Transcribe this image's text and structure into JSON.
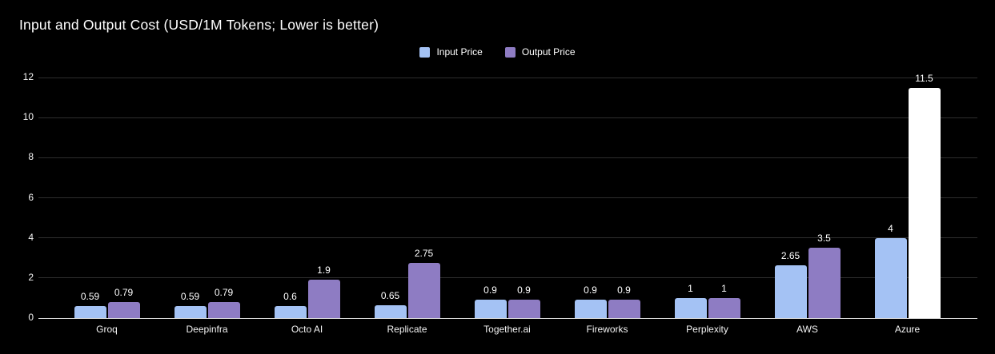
{
  "header": {
    "title": "Input and Output Cost (USD/1M Tokens; Lower is better)"
  },
  "legend": {
    "items": [
      {
        "label": "Input Price",
        "swatch_color": "#a4c2f4"
      },
      {
        "label": "Output Price",
        "swatch_color": "#8e7cc3"
      }
    ]
  },
  "chart_data": {
    "type": "bar",
    "title": "Input and Output Cost (USD/1M Tokens; Lower is better)",
    "categories": [
      "Groq",
      "Deepinfra",
      "Octo AI",
      "Replicate",
      "Together.ai",
      "Fireworks",
      "Perplexity",
      "AWS",
      "Azure"
    ],
    "series": [
      {
        "name": "Input Price",
        "color": "#a4c2f4",
        "values": [
          0.59,
          0.59,
          0.6,
          0.65,
          0.9,
          0.9,
          1,
          2.65,
          4
        ]
      },
      {
        "name": "Output Price",
        "color": "#8e7cc3",
        "values": [
          0.79,
          0.79,
          1.9,
          2.75,
          0.9,
          0.9,
          1,
          3.5,
          11.5
        ],
        "point_colors": {
          "8": "#ffffff"
        }
      }
    ],
    "value_labels": [
      "0.59",
      "0.79",
      "0.59",
      "0.79",
      "0.6",
      "1.9",
      "0.65",
      "2.75",
      "0.9",
      "0.9",
      "0.9",
      "0.9",
      "1",
      "1",
      "2.65",
      "3.5",
      "4",
      "11.5"
    ],
    "xlabel": "",
    "ylabel": "",
    "ylim": [
      0,
      12
    ],
    "yticks": [
      0,
      2,
      4,
      6,
      8,
      10,
      12
    ],
    "grid": true,
    "legend_position": "top-center",
    "colors": {
      "background": "#000000",
      "gridline": "#2e2e2e",
      "axis_line": "#e6e6e6",
      "text": "#ffffff"
    }
  }
}
